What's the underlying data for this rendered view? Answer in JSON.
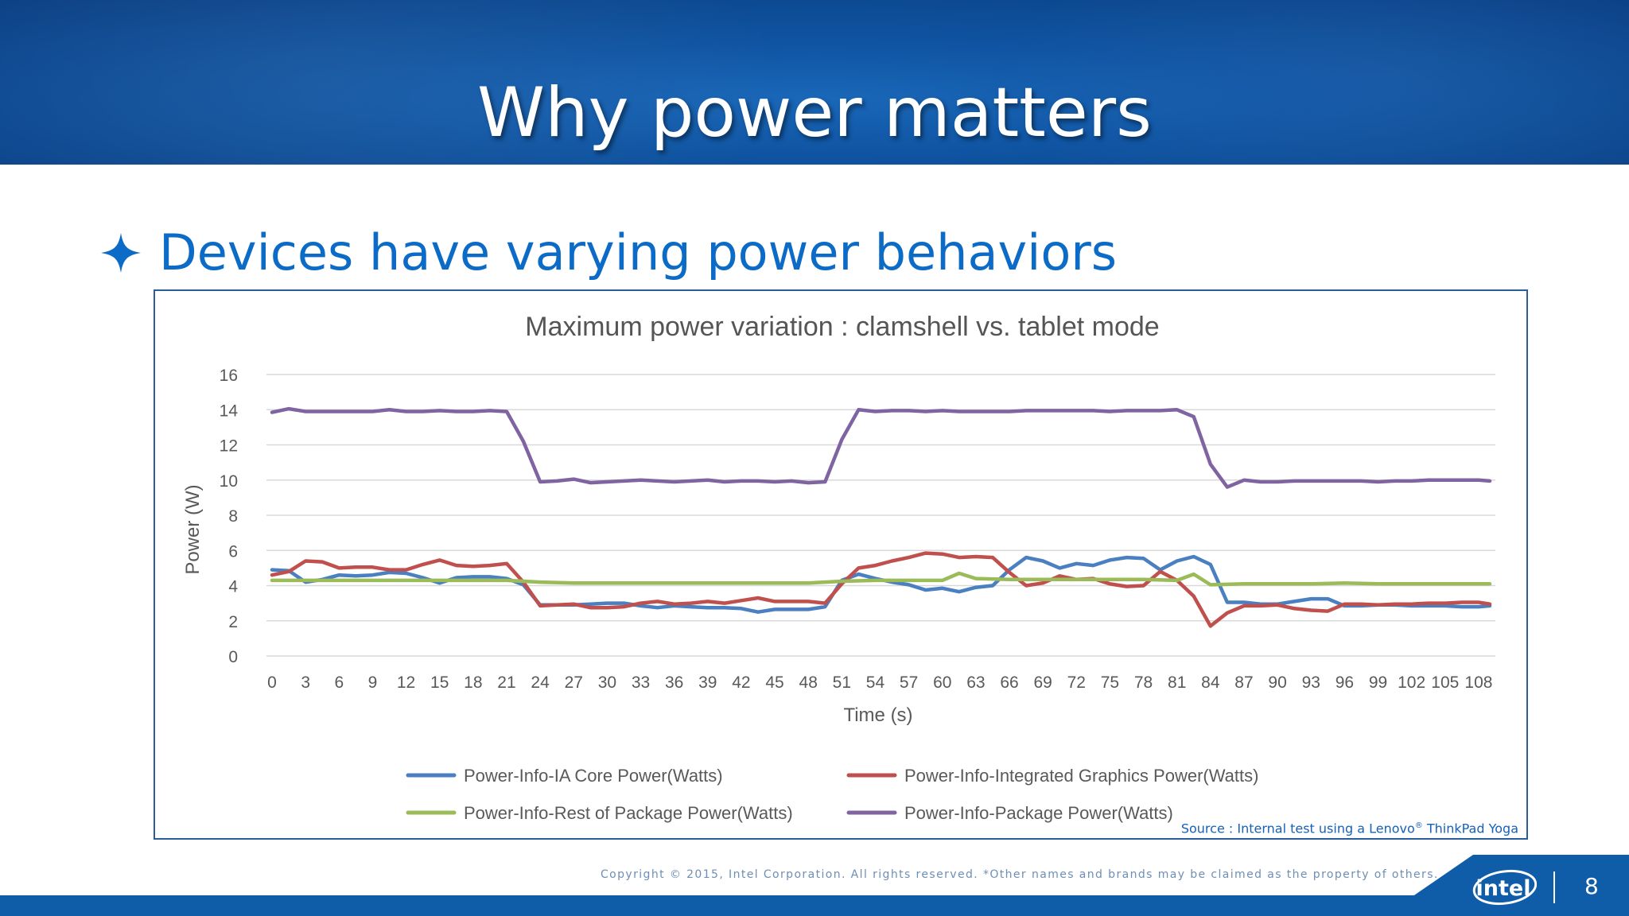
{
  "slide": {
    "title": "Why power matters",
    "bullet": "Devices have varying power behaviors",
    "source_prefix": "Source : Internal test using a Lenovo",
    "source_reg": "®",
    "source_suffix": " ThinkPad Yoga",
    "copyright": "Copyright © 2015, Intel Corporation. All rights reserved. *Other names and brands may be claimed as the property of others.",
    "logo_text": "intel",
    "page_number": "8",
    "colors": {
      "banner": "#0f54a2",
      "bullet": "#0b6bc6",
      "footer": "#0f5ca8"
    },
    "icons": [
      "four-point-star-icon",
      "intel-logo-icon"
    ]
  },
  "chart_data": {
    "type": "line",
    "title": "Maximum power variation : clamshell vs. tablet mode",
    "xlabel": "Time (s)",
    "ylabel": "Power (W)",
    "ylim": [
      0,
      16
    ],
    "yticks": [
      0,
      2,
      4,
      6,
      8,
      10,
      12,
      14,
      16
    ],
    "xticks": [
      0,
      3,
      6,
      9,
      12,
      15,
      18,
      21,
      24,
      27,
      30,
      33,
      36,
      39,
      42,
      45,
      48,
      51,
      54,
      57,
      60,
      63,
      66,
      69,
      72,
      75,
      78,
      81,
      84,
      87,
      90,
      93,
      96,
      99,
      102,
      105,
      108
    ],
    "xtick_labels": [
      "0",
      "3",
      "6",
      "9",
      "12",
      "15",
      "18",
      "21",
      "24",
      "27",
      "30",
      "33",
      "36",
      "39",
      "42",
      "45",
      "48",
      "51",
      "54",
      "57",
      "60",
      "63",
      "66",
      "69",
      "72",
      "75",
      "78",
      "81",
      "84",
      "87",
      "90",
      "93",
      "96",
      "99",
      "102",
      "105",
      "108"
    ],
    "x_start": 0,
    "x_end": 109,
    "grid": "horizontal",
    "legend_position": "bottom",
    "series": [
      {
        "name": "Power-Info-IA Core Power(Watts)",
        "color": "#4a7fc1",
        "points": [
          [
            0,
            4.9
          ],
          [
            1.5,
            4.85
          ],
          [
            3,
            4.2
          ],
          [
            4.5,
            4.35
          ],
          [
            6,
            4.6
          ],
          [
            7.5,
            4.55
          ],
          [
            9,
            4.6
          ],
          [
            10.5,
            4.75
          ],
          [
            12,
            4.7
          ],
          [
            13.5,
            4.45
          ],
          [
            15,
            4.15
          ],
          [
            16.5,
            4.45
          ],
          [
            18,
            4.5
          ],
          [
            19.5,
            4.5
          ],
          [
            21,
            4.4
          ],
          [
            22.5,
            4.05
          ],
          [
            24,
            2.9
          ],
          [
            25.5,
            2.9
          ],
          [
            27,
            2.9
          ],
          [
            28.5,
            2.95
          ],
          [
            30,
            3.0
          ],
          [
            31.5,
            3.0
          ],
          [
            33,
            2.85
          ],
          [
            34.5,
            2.75
          ],
          [
            36,
            2.85
          ],
          [
            37.5,
            2.8
          ],
          [
            39,
            2.75
          ],
          [
            40.5,
            2.75
          ],
          [
            42,
            2.7
          ],
          [
            43.5,
            2.5
          ],
          [
            45,
            2.65
          ],
          [
            46.5,
            2.65
          ],
          [
            48,
            2.65
          ],
          [
            49.5,
            2.8
          ],
          [
            51,
            4.3
          ],
          [
            52.5,
            4.65
          ],
          [
            54,
            4.4
          ],
          [
            55.5,
            4.2
          ],
          [
            57,
            4.05
          ],
          [
            58.5,
            3.75
          ],
          [
            60,
            3.85
          ],
          [
            61.5,
            3.65
          ],
          [
            63,
            3.9
          ],
          [
            64.5,
            4.0
          ],
          [
            66,
            4.9
          ],
          [
            67.5,
            5.6
          ],
          [
            69,
            5.4
          ],
          [
            70.5,
            5.0
          ],
          [
            72,
            5.25
          ],
          [
            73.5,
            5.15
          ],
          [
            75,
            5.45
          ],
          [
            76.5,
            5.6
          ],
          [
            78,
            5.55
          ],
          [
            79.5,
            4.9
          ],
          [
            81,
            5.4
          ],
          [
            82.5,
            5.65
          ],
          [
            84,
            5.2
          ],
          [
            85.5,
            3.05
          ],
          [
            87,
            3.05
          ],
          [
            88.5,
            2.95
          ],
          [
            90,
            2.95
          ],
          [
            91.5,
            3.1
          ],
          [
            93,
            3.25
          ],
          [
            94.5,
            3.25
          ],
          [
            96,
            2.85
          ],
          [
            97.5,
            2.85
          ],
          [
            99,
            2.9
          ],
          [
            100.5,
            2.9
          ],
          [
            102,
            2.85
          ],
          [
            103.5,
            2.85
          ],
          [
            105,
            2.85
          ],
          [
            106.5,
            2.8
          ],
          [
            108,
            2.8
          ],
          [
            109,
            2.85
          ]
        ]
      },
      {
        "name": "Power-Info-Integrated Graphics Power(Watts)",
        "color": "#c0504d",
        "points": [
          [
            0,
            4.6
          ],
          [
            1.5,
            4.8
          ],
          [
            3,
            5.4
          ],
          [
            4.5,
            5.35
          ],
          [
            6,
            5.0
          ],
          [
            7.5,
            5.05
          ],
          [
            9,
            5.05
          ],
          [
            10.5,
            4.9
          ],
          [
            12,
            4.9
          ],
          [
            13.5,
            5.2
          ],
          [
            15,
            5.45
          ],
          [
            16.5,
            5.15
          ],
          [
            18,
            5.1
          ],
          [
            19.5,
            5.15
          ],
          [
            21,
            5.25
          ],
          [
            22.5,
            4.2
          ],
          [
            24,
            2.85
          ],
          [
            25.5,
            2.9
          ],
          [
            27,
            2.95
          ],
          [
            28.5,
            2.75
          ],
          [
            30,
            2.75
          ],
          [
            31.5,
            2.8
          ],
          [
            33,
            3.0
          ],
          [
            34.5,
            3.1
          ],
          [
            36,
            2.95
          ],
          [
            37.5,
            3.0
          ],
          [
            39,
            3.1
          ],
          [
            40.5,
            3.0
          ],
          [
            42,
            3.15
          ],
          [
            43.5,
            3.3
          ],
          [
            45,
            3.1
          ],
          [
            46.5,
            3.1
          ],
          [
            48,
            3.1
          ],
          [
            49.5,
            3.0
          ],
          [
            51,
            4.1
          ],
          [
            52.5,
            5.0
          ],
          [
            54,
            5.15
          ],
          [
            55.5,
            5.4
          ],
          [
            57,
            5.6
          ],
          [
            58.5,
            5.85
          ],
          [
            60,
            5.8
          ],
          [
            61.5,
            5.6
          ],
          [
            63,
            5.65
          ],
          [
            64.5,
            5.6
          ],
          [
            66,
            4.75
          ],
          [
            67.5,
            4.0
          ],
          [
            69,
            4.15
          ],
          [
            70.5,
            4.55
          ],
          [
            72,
            4.35
          ],
          [
            73.5,
            4.4
          ],
          [
            75,
            4.1
          ],
          [
            76.5,
            3.95
          ],
          [
            78,
            4.0
          ],
          [
            79.5,
            4.8
          ],
          [
            81,
            4.3
          ],
          [
            82.5,
            3.4
          ],
          [
            84,
            1.7
          ],
          [
            85.5,
            2.45
          ],
          [
            87,
            2.85
          ],
          [
            88.5,
            2.85
          ],
          [
            90,
            2.9
          ],
          [
            91.5,
            2.7
          ],
          [
            93,
            2.6
          ],
          [
            94.5,
            2.55
          ],
          [
            96,
            2.95
          ],
          [
            97.5,
            2.95
          ],
          [
            99,
            2.9
          ],
          [
            100.5,
            2.95
          ],
          [
            102,
            2.95
          ],
          [
            103.5,
            3.0
          ],
          [
            105,
            3.0
          ],
          [
            106.5,
            3.05
          ],
          [
            108,
            3.05
          ],
          [
            109,
            2.95
          ]
        ]
      },
      {
        "name": "Power-Info-Rest of Package Power(Watts)",
        "color": "#9bbb59",
        "points": [
          [
            0,
            4.3
          ],
          [
            3,
            4.3
          ],
          [
            6,
            4.3
          ],
          [
            9,
            4.3
          ],
          [
            12,
            4.3
          ],
          [
            15,
            4.3
          ],
          [
            18,
            4.3
          ],
          [
            21,
            4.3
          ],
          [
            24,
            4.2
          ],
          [
            27,
            4.15
          ],
          [
            30,
            4.15
          ],
          [
            33,
            4.15
          ],
          [
            36,
            4.15
          ],
          [
            39,
            4.15
          ],
          [
            42,
            4.15
          ],
          [
            45,
            4.15
          ],
          [
            48,
            4.15
          ],
          [
            51,
            4.25
          ],
          [
            54,
            4.3
          ],
          [
            57,
            4.3
          ],
          [
            60,
            4.3
          ],
          [
            61.5,
            4.7
          ],
          [
            63,
            4.4
          ],
          [
            66,
            4.35
          ],
          [
            69,
            4.35
          ],
          [
            72,
            4.35
          ],
          [
            75,
            4.35
          ],
          [
            78,
            4.35
          ],
          [
            81,
            4.3
          ],
          [
            82.5,
            4.65
          ],
          [
            84,
            4.05
          ],
          [
            87,
            4.1
          ],
          [
            90,
            4.1
          ],
          [
            93,
            4.1
          ],
          [
            96,
            4.15
          ],
          [
            99,
            4.1
          ],
          [
            102,
            4.1
          ],
          [
            105,
            4.1
          ],
          [
            108,
            4.1
          ],
          [
            109,
            4.1
          ]
        ]
      },
      {
        "name": "Power-Info-Package Power(Watts)",
        "color": "#8064a2",
        "points": [
          [
            0,
            13.85
          ],
          [
            1.5,
            14.05
          ],
          [
            3,
            13.9
          ],
          [
            4.5,
            13.9
          ],
          [
            6,
            13.9
          ],
          [
            7.5,
            13.9
          ],
          [
            9,
            13.9
          ],
          [
            10.5,
            14.0
          ],
          [
            12,
            13.9
          ],
          [
            13.5,
            13.9
          ],
          [
            15,
            13.95
          ],
          [
            16.5,
            13.9
          ],
          [
            18,
            13.9
          ],
          [
            19.5,
            13.95
          ],
          [
            21,
            13.9
          ],
          [
            22.5,
            12.2
          ],
          [
            24,
            9.9
          ],
          [
            25.5,
            9.95
          ],
          [
            27,
            10.05
          ],
          [
            28.5,
            9.85
          ],
          [
            30,
            9.9
          ],
          [
            31.5,
            9.95
          ],
          [
            33,
            10.0
          ],
          [
            34.5,
            9.95
          ],
          [
            36,
            9.9
          ],
          [
            37.5,
            9.95
          ],
          [
            39,
            10.0
          ],
          [
            40.5,
            9.9
          ],
          [
            42,
            9.95
          ],
          [
            43.5,
            9.95
          ],
          [
            45,
            9.9
          ],
          [
            46.5,
            9.95
          ],
          [
            48,
            9.85
          ],
          [
            49.5,
            9.9
          ],
          [
            51,
            12.3
          ],
          [
            52.5,
            14.0
          ],
          [
            54,
            13.9
          ],
          [
            55.5,
            13.95
          ],
          [
            57,
            13.95
          ],
          [
            58.5,
            13.9
          ],
          [
            60,
            13.95
          ],
          [
            61.5,
            13.9
          ],
          [
            63,
            13.9
          ],
          [
            64.5,
            13.9
          ],
          [
            66,
            13.9
          ],
          [
            67.5,
            13.95
          ],
          [
            69,
            13.95
          ],
          [
            70.5,
            13.95
          ],
          [
            72,
            13.95
          ],
          [
            73.5,
            13.95
          ],
          [
            75,
            13.9
          ],
          [
            76.5,
            13.95
          ],
          [
            78,
            13.95
          ],
          [
            79.5,
            13.95
          ],
          [
            81,
            14.0
          ],
          [
            82.5,
            13.6
          ],
          [
            84,
            10.9
          ],
          [
            85.5,
            9.6
          ],
          [
            87,
            10.0
          ],
          [
            88.5,
            9.9
          ],
          [
            90,
            9.9
          ],
          [
            91.5,
            9.95
          ],
          [
            93,
            9.95
          ],
          [
            94.5,
            9.95
          ],
          [
            96,
            9.95
          ],
          [
            97.5,
            9.95
          ],
          [
            99,
            9.9
          ],
          [
            100.5,
            9.95
          ],
          [
            102,
            9.95
          ],
          [
            103.5,
            10.0
          ],
          [
            105,
            10.0
          ],
          [
            106.5,
            10.0
          ],
          [
            108,
            10.0
          ],
          [
            109,
            9.95
          ]
        ]
      }
    ]
  }
}
